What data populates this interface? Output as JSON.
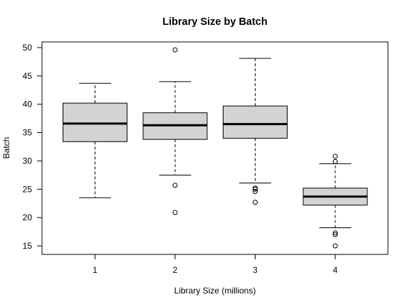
{
  "chart_data": {
    "type": "box",
    "title": "Library Size by Batch",
    "xlabel": "Library Size (millions)",
    "ylabel": "Batch",
    "categories": [
      "1",
      "2",
      "3",
      "4"
    ],
    "ylim": [
      13.5,
      51
    ],
    "yticks": [
      15,
      20,
      25,
      30,
      35,
      40,
      45,
      50
    ],
    "grid": false,
    "box_fill": "#d3d3d3",
    "boxes": [
      {
        "category": "1",
        "whisker_low": 23.5,
        "q1": 33.4,
        "median": 36.6,
        "q3": 40.2,
        "whisker_high": 43.7,
        "outliers": []
      },
      {
        "category": "2",
        "whisker_low": 27.5,
        "q1": 33.8,
        "median": 36.3,
        "q3": 38.5,
        "whisker_high": 44.0,
        "outliers": [
          49.6,
          25.7,
          20.9
        ]
      },
      {
        "category": "3",
        "whisker_low": 26.1,
        "q1": 34.0,
        "median": 36.5,
        "q3": 39.7,
        "whisker_high": 48.1,
        "outliers": [
          25.2,
          25.0,
          24.6,
          22.7
        ]
      },
      {
        "category": "4",
        "whisker_low": 18.2,
        "q1": 22.2,
        "median": 23.7,
        "q3": 25.2,
        "whisker_high": 29.5,
        "outliers": [
          30.8,
          29.9,
          17.3,
          17.0,
          15.0
        ]
      }
    ]
  }
}
